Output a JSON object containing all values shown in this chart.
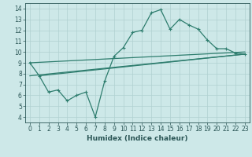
{
  "bg_color": "#cde8e8",
  "grid_color": "#b0d0d0",
  "line_color": "#2e7d6e",
  "xlabel": "Humidex (Indice chaleur)",
  "xlim": [
    -0.5,
    23.5
  ],
  "ylim": [
    3.5,
    14.5
  ],
  "xticks": [
    0,
    1,
    2,
    3,
    4,
    5,
    6,
    7,
    8,
    9,
    10,
    11,
    12,
    13,
    14,
    15,
    16,
    17,
    18,
    19,
    20,
    21,
    22,
    23
  ],
  "yticks": [
    4,
    5,
    6,
    7,
    8,
    9,
    10,
    11,
    12,
    13,
    14
  ],
  "line1_x": [
    0,
    1,
    2,
    3,
    4,
    5,
    6,
    7,
    8,
    9,
    10,
    11,
    12,
    13,
    14,
    15,
    16,
    17,
    18,
    19,
    20,
    21,
    22,
    23
  ],
  "line1_y": [
    9.0,
    7.8,
    6.3,
    6.5,
    5.5,
    6.0,
    6.3,
    4.0,
    7.3,
    9.6,
    10.4,
    11.8,
    12.0,
    13.6,
    13.9,
    12.1,
    13.0,
    12.5,
    12.1,
    11.1,
    10.3,
    10.3,
    9.9,
    9.8
  ],
  "line2_x": [
    0,
    23
  ],
  "line2_y": [
    9.0,
    10.0
  ],
  "line3_x": [
    0,
    23
  ],
  "line3_y": [
    7.8,
    9.8
  ],
  "line4_x": [
    1,
    23
  ],
  "line4_y": [
    7.8,
    9.8
  ],
  "xlabel_fontsize": 6.5,
  "tick_fontsize": 5.5
}
